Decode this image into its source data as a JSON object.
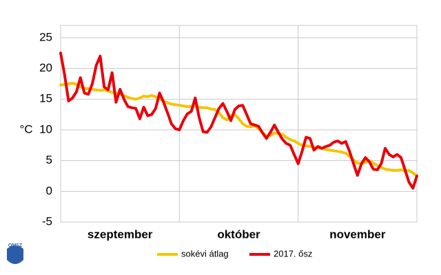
{
  "chart_data": {
    "type": "line",
    "ylabel": "°C",
    "ylim": [
      -5,
      27
    ],
    "yticks": [
      -5,
      0,
      5,
      10,
      15,
      20,
      25
    ],
    "grid": true,
    "categories": [
      null,
      null,
      null,
      null,
      null,
      null,
      null,
      null,
      null,
      null,
      null,
      null,
      null,
      null,
      null,
      "szeptember",
      null,
      null,
      null,
      null,
      null,
      null,
      null,
      null,
      null,
      null,
      null,
      null,
      null,
      null,
      null,
      null,
      null,
      null,
      null,
      null,
      null,
      null,
      null,
      null,
      null,
      null,
      null,
      null,
      null,
      "október",
      null,
      null,
      null,
      null,
      null,
      null,
      null,
      null,
      null,
      null,
      null,
      null,
      null,
      null,
      null,
      null,
      null,
      null,
      null,
      null,
      null,
      null,
      null,
      null,
      null,
      null,
      null,
      null,
      null,
      "november",
      null,
      null,
      null,
      null,
      null,
      null,
      null,
      null,
      null,
      null,
      null,
      null,
      null,
      null,
      null
    ],
    "series": [
      {
        "name": "sokévi átlag",
        "color": "#f5c400",
        "values": [
          17.3,
          17.4,
          17.5,
          17.6,
          17.4,
          17,
          16.8,
          16.7,
          16.6,
          16.5,
          16.4,
          16.5,
          16.3,
          16.1,
          16,
          15.8,
          15.6,
          15.3,
          15.1,
          15,
          15.2,
          15.5,
          15.4,
          15.6,
          15.4,
          15.1,
          14.7,
          14.4,
          14.2,
          14.1,
          14,
          13.9,
          13.8,
          13.8,
          13.9,
          13.7,
          13.6,
          13.6,
          13.4,
          13.3,
          12.8,
          12,
          11.6,
          12.3,
          12.5,
          11.8,
          11,
          10.6,
          10.5,
          10.7,
          10.2,
          9.6,
          9,
          9.1,
          9.5,
          9.4,
          9.3,
          8.8,
          8.4,
          8.2,
          7.8,
          7.5,
          7.4,
          7.3,
          7.2,
          7.1,
          7,
          6.8,
          6.7,
          6.6,
          6.5,
          6.4,
          6.2,
          5.7,
          5.1,
          4.6,
          4.5,
          4.7,
          5,
          4.6,
          4.2,
          3.9,
          3.6,
          3.5,
          3.4,
          3.4,
          3.5,
          3.3,
          3.4,
          3,
          2.5
        ]
      },
      {
        "name": "2017. ősz",
        "color": "#e8000b",
        "values": [
          22.5,
          19,
          14.7,
          15.2,
          16.2,
          18.5,
          16,
          15.8,
          17.5,
          20.5,
          22,
          17,
          16.5,
          19.3,
          14.5,
          16.6,
          15,
          13.8,
          13.6,
          13.5,
          11.8,
          13.7,
          12.3,
          12.5,
          13.5,
          16,
          14.5,
          12.8,
          11,
          10.2,
          10,
          11.5,
          12.6,
          13,
          15.2,
          12,
          9.7,
          9.6,
          10.5,
          12,
          13.5,
          14.3,
          13,
          11.5,
          13.3,
          13.9,
          14,
          12.5,
          11,
          10.8,
          10.6,
          9.5,
          8.6,
          9.6,
          10.8,
          9.6,
          8.5,
          7.8,
          7.5,
          6,
          4.5,
          6.5,
          8.8,
          8.6,
          6.7,
          7.3,
          7,
          7.3,
          7.5,
          8,
          8.2,
          7.8,
          8.1,
          6.5,
          4.5,
          2.6,
          4.5,
          5.5,
          4.8,
          3.6,
          3.5,
          4.5,
          7,
          6,
          5.6,
          6,
          5.5,
          3.5,
          1.5,
          0.5,
          2.5
        ]
      }
    ],
    "legend": "bottom",
    "logo_text": "OMSZ"
  }
}
